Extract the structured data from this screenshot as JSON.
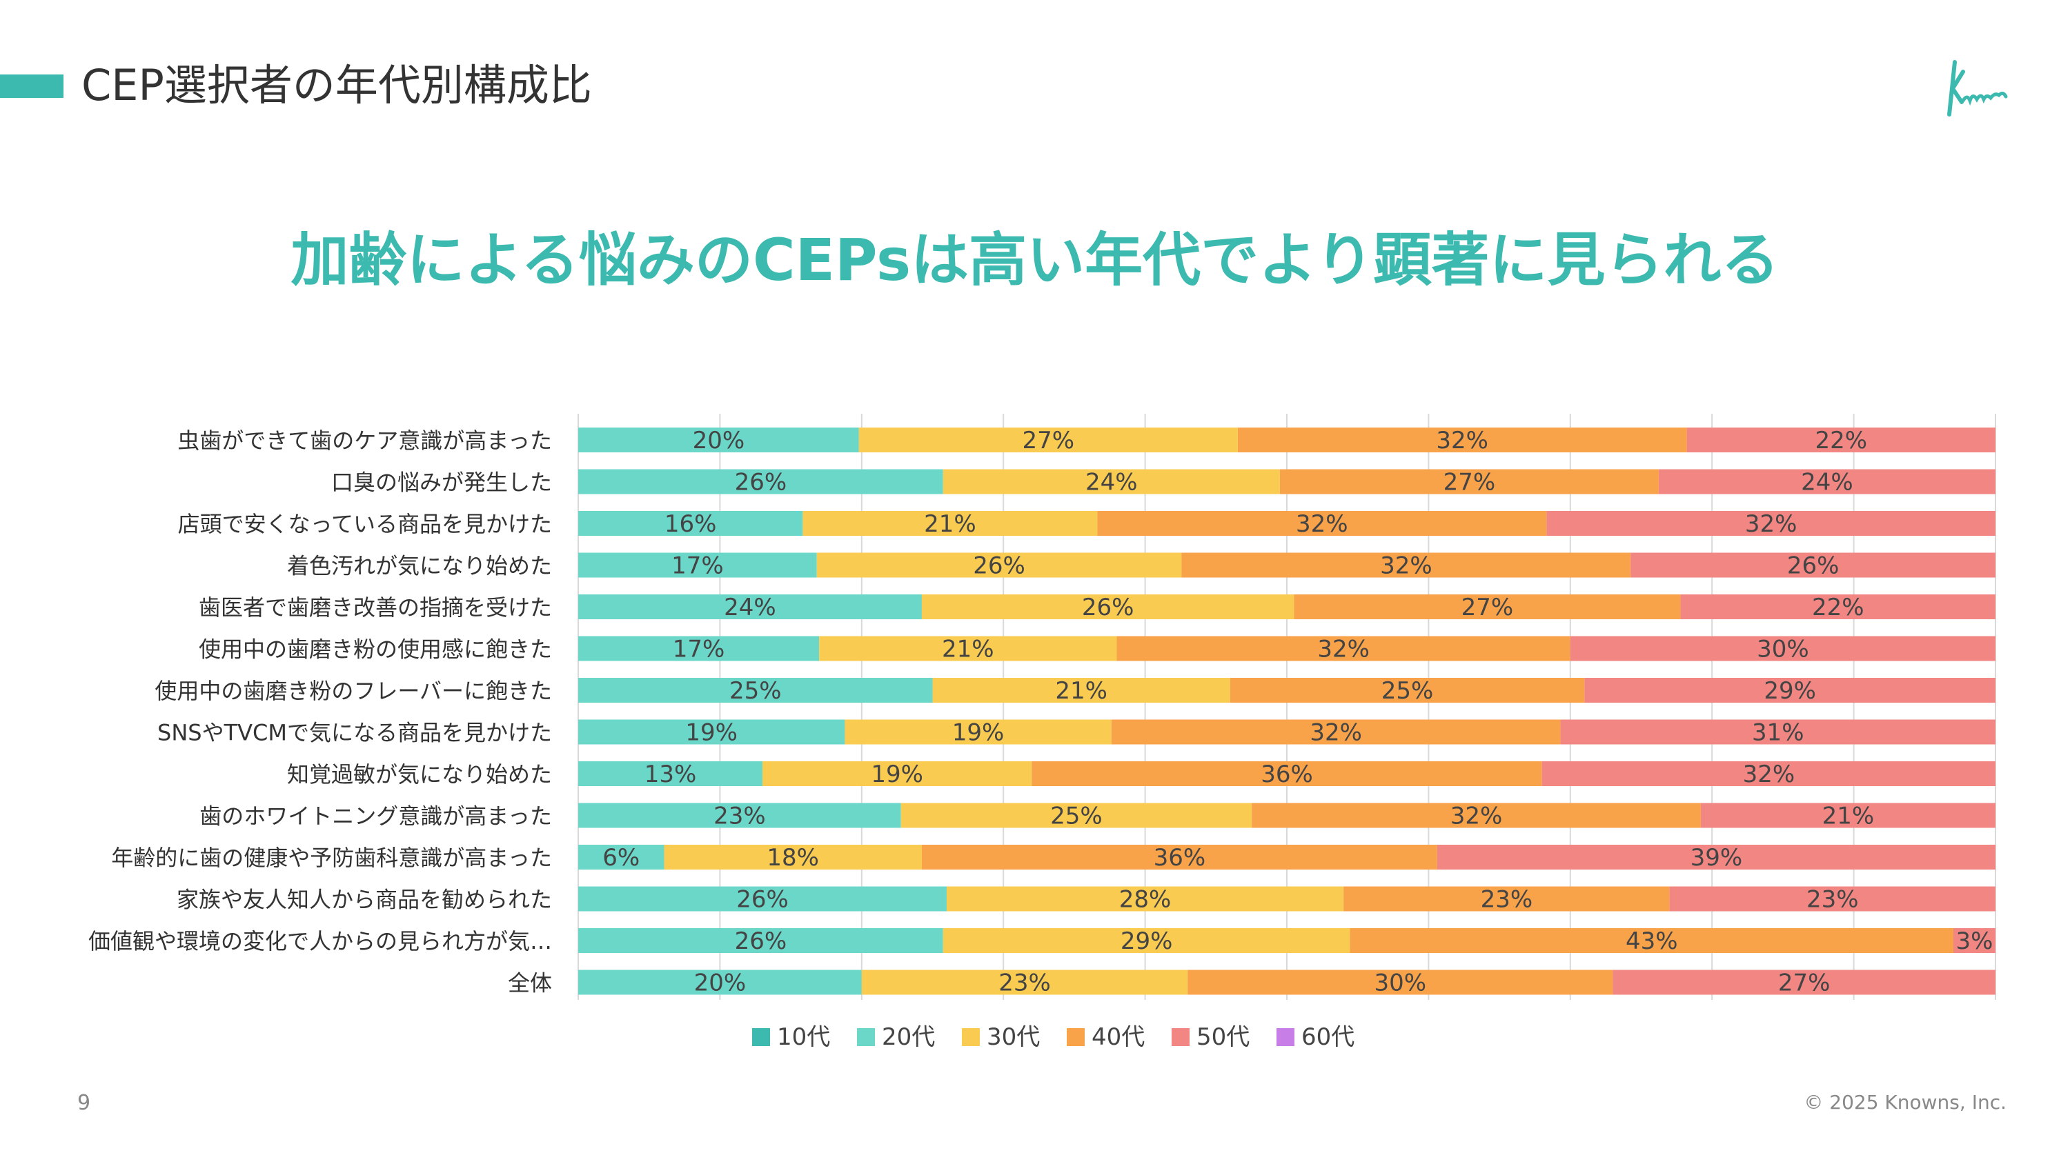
{
  "header": {
    "title": "CEP選択者の年代別構成比",
    "logo_text": "Knowns"
  },
  "headline": "加齢による悩みのCEPsは高い年代でより顕著に見られる",
  "footer": {
    "page_number": "9",
    "copyright": "© 2025 Knowns, Inc."
  },
  "chart_data": {
    "type": "bar",
    "orientation": "horizontal",
    "stacked": true,
    "percent_stacked": true,
    "xlim": [
      0,
      100
    ],
    "grid": true,
    "legend_position": "bottom",
    "categories": [
      "虫歯ができて歯のケア意識が高まった",
      "口臭の悩みが発生した",
      "店頭で安くなっている商品を見かけた",
      "着色汚れが気になり始めた",
      "歯医者で歯磨き改善の指摘を受けた",
      "使用中の歯磨き粉の使用感に飽きた",
      "使用中の歯磨き粉のフレーバーに飽きた",
      "SNSやTVCMで気になる商品を見かけた",
      "知覚過敏が気になり始めた",
      "歯のホワイトニング意識が高まった",
      "年齢的に歯の健康や予防歯科意識が高まった",
      "家族や友人知人から商品を勧められた",
      "価値観や環境の変化で人からの見られ方が気…",
      "全体"
    ],
    "series": [
      {
        "name": "10代",
        "color": "#3dbab0",
        "values": [
          0,
          0,
          0,
          0,
          0,
          0,
          0,
          0,
          0,
          0,
          0,
          0,
          0,
          0
        ]
      },
      {
        "name": "20代",
        "color": "#6ad7c9",
        "values": [
          20,
          26,
          16,
          17,
          24,
          17,
          25,
          19,
          13,
          23,
          6,
          26,
          26,
          20
        ]
      },
      {
        "name": "30代",
        "color": "#f9cb51",
        "values": [
          27,
          24,
          21,
          26,
          26,
          21,
          21,
          19,
          19,
          25,
          18,
          28,
          29,
          23
        ]
      },
      {
        "name": "40代",
        "color": "#f8a24a",
        "values": [
          32,
          27,
          32,
          32,
          27,
          32,
          25,
          32,
          36,
          32,
          36,
          23,
          43,
          30
        ]
      },
      {
        "name": "50代",
        "color": "#f28682",
        "values": [
          22,
          24,
          32,
          26,
          22,
          30,
          29,
          31,
          32,
          21,
          39,
          23,
          3,
          27
        ]
      },
      {
        "name": "60代",
        "color": "#c77ee6",
        "values": [
          0,
          0,
          0,
          0,
          0,
          0,
          0,
          0,
          0,
          0,
          0,
          0,
          0,
          0
        ]
      }
    ],
    "value_suffix": "%"
  }
}
